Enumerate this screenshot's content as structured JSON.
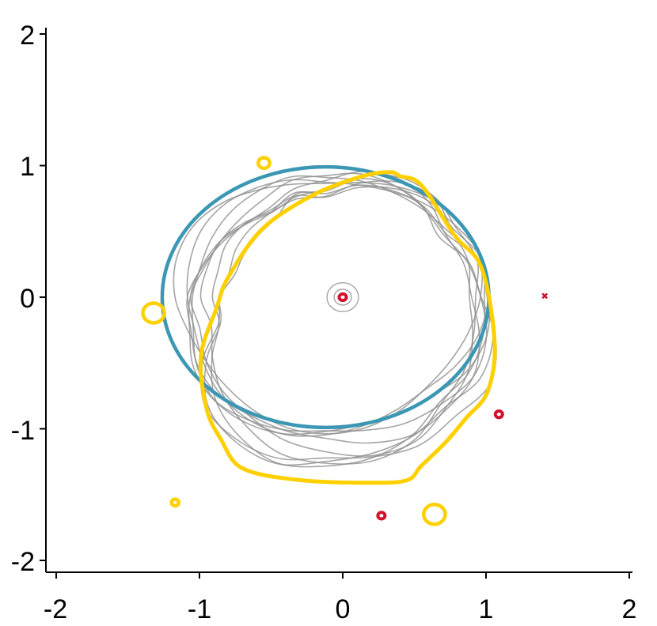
{
  "chart_data": {
    "type": "line",
    "title": "",
    "xlabel": "",
    "ylabel": "",
    "xlim": [
      -2.1,
      2.1
    ],
    "ylim": [
      -2.05,
      2.05
    ],
    "grid": false,
    "legend": "none",
    "x_ticks": [
      {
        "value": -2,
        "label": "-2"
      },
      {
        "value": -1,
        "label": "-1"
      },
      {
        "value": 0,
        "label": "0"
      },
      {
        "value": 1,
        "label": "1"
      },
      {
        "value": 2,
        "label": "2"
      }
    ],
    "y_ticks": [
      {
        "value": -2,
        "label": "-2"
      },
      {
        "value": -1,
        "label": "-1"
      },
      {
        "value": 0,
        "label": "0"
      },
      {
        "value": 1,
        "label": "1"
      },
      {
        "value": 2,
        "label": "2"
      }
    ],
    "series": [
      {
        "role": "ellipse",
        "color": "#3b97b3",
        "shape": "ellipse",
        "center": [
          -0.12,
          0.0
        ],
        "radii": [
          1.14,
          0.99
        ]
      },
      {
        "role": "highlight-curve",
        "color": "#ffd000",
        "shape": "closed-curve",
        "points": [
          [
            0.4,
            0.92
          ],
          [
            0.55,
            0.85
          ],
          [
            0.78,
            0.47
          ],
          [
            0.97,
            0.22
          ],
          [
            1.06,
            -0.35
          ],
          [
            1.01,
            -0.72
          ],
          [
            0.86,
            -0.92
          ],
          [
            0.72,
            -1.1
          ],
          [
            0.55,
            -1.28
          ],
          [
            0.45,
            -1.39
          ],
          [
            0.2,
            -1.41
          ],
          [
            -0.3,
            -1.39
          ],
          [
            -0.7,
            -1.3
          ],
          [
            -0.85,
            -1.08
          ],
          [
            -0.95,
            -0.85
          ],
          [
            -0.99,
            -0.45
          ],
          [
            -0.88,
            -0.08
          ],
          [
            -0.8,
            0.15
          ],
          [
            -0.56,
            0.52
          ],
          [
            -0.2,
            0.78
          ],
          [
            0.14,
            0.92
          ],
          [
            0.33,
            0.95
          ]
        ]
      },
      {
        "role": "small-loops",
        "color": "#ffd000",
        "loops": [
          [
            -0.55,
            1.02,
            0.04
          ],
          [
            -1.32,
            -0.12,
            0.075
          ],
          [
            -1.17,
            -1.56,
            0.025
          ],
          [
            0.64,
            -1.65,
            0.075
          ]
        ]
      },
      {
        "role": "red-markers",
        "color": "#d0122d",
        "loops": [
          [
            0.0,
            0.0,
            0.025
          ],
          [
            1.09,
            -0.89,
            0.025
          ],
          [
            0.27,
            -1.66,
            0.025
          ]
        ],
        "cross": [
          1.41,
          0.01
        ]
      },
      {
        "role": "gray-contours",
        "color": "#8f8f8f",
        "count": 10
      }
    ]
  }
}
